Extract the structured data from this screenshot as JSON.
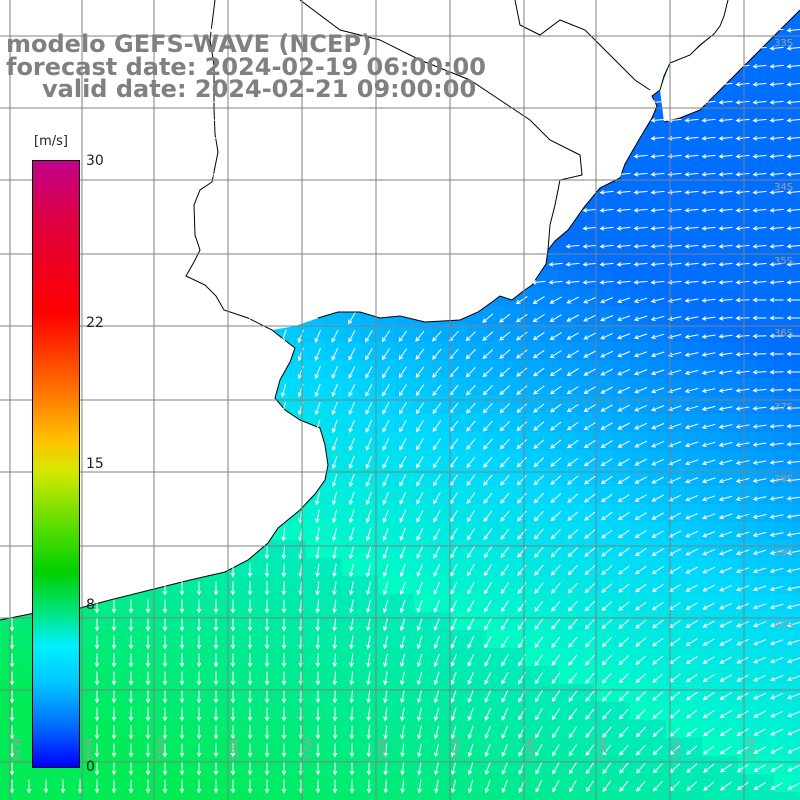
{
  "title": {
    "line1": "modelo GEFS-WAVE (NCEP)",
    "line2": "forecast date: 2024-02-19 06:00:00",
    "line3": "valid date: 2024-02-21 09:00:00"
  },
  "colorbar": {
    "unit": "[m/s]",
    "ticks": [
      {
        "label": "30",
        "value": 30
      },
      {
        "label": "22",
        "value": 22
      },
      {
        "label": "15",
        "value": 15
      },
      {
        "label": "8",
        "value": 8
      },
      {
        "label": "0",
        "value": 0
      }
    ],
    "min": 0,
    "max": 30
  },
  "map": {
    "lon_labels": [
      "61W",
      "60W",
      "59W",
      "58W",
      "57W",
      "56W",
      "55W",
      "54W",
      "53W",
      "52W",
      "51W"
    ],
    "lat_labels": [
      "33S",
      "34S",
      "35S",
      "36S",
      "37S",
      "38S",
      "39S",
      "40S"
    ],
    "colors": {
      "land": "#ffffff",
      "coast": "#000000",
      "grid": "#808080",
      "arrow": "#ffffff"
    }
  }
}
